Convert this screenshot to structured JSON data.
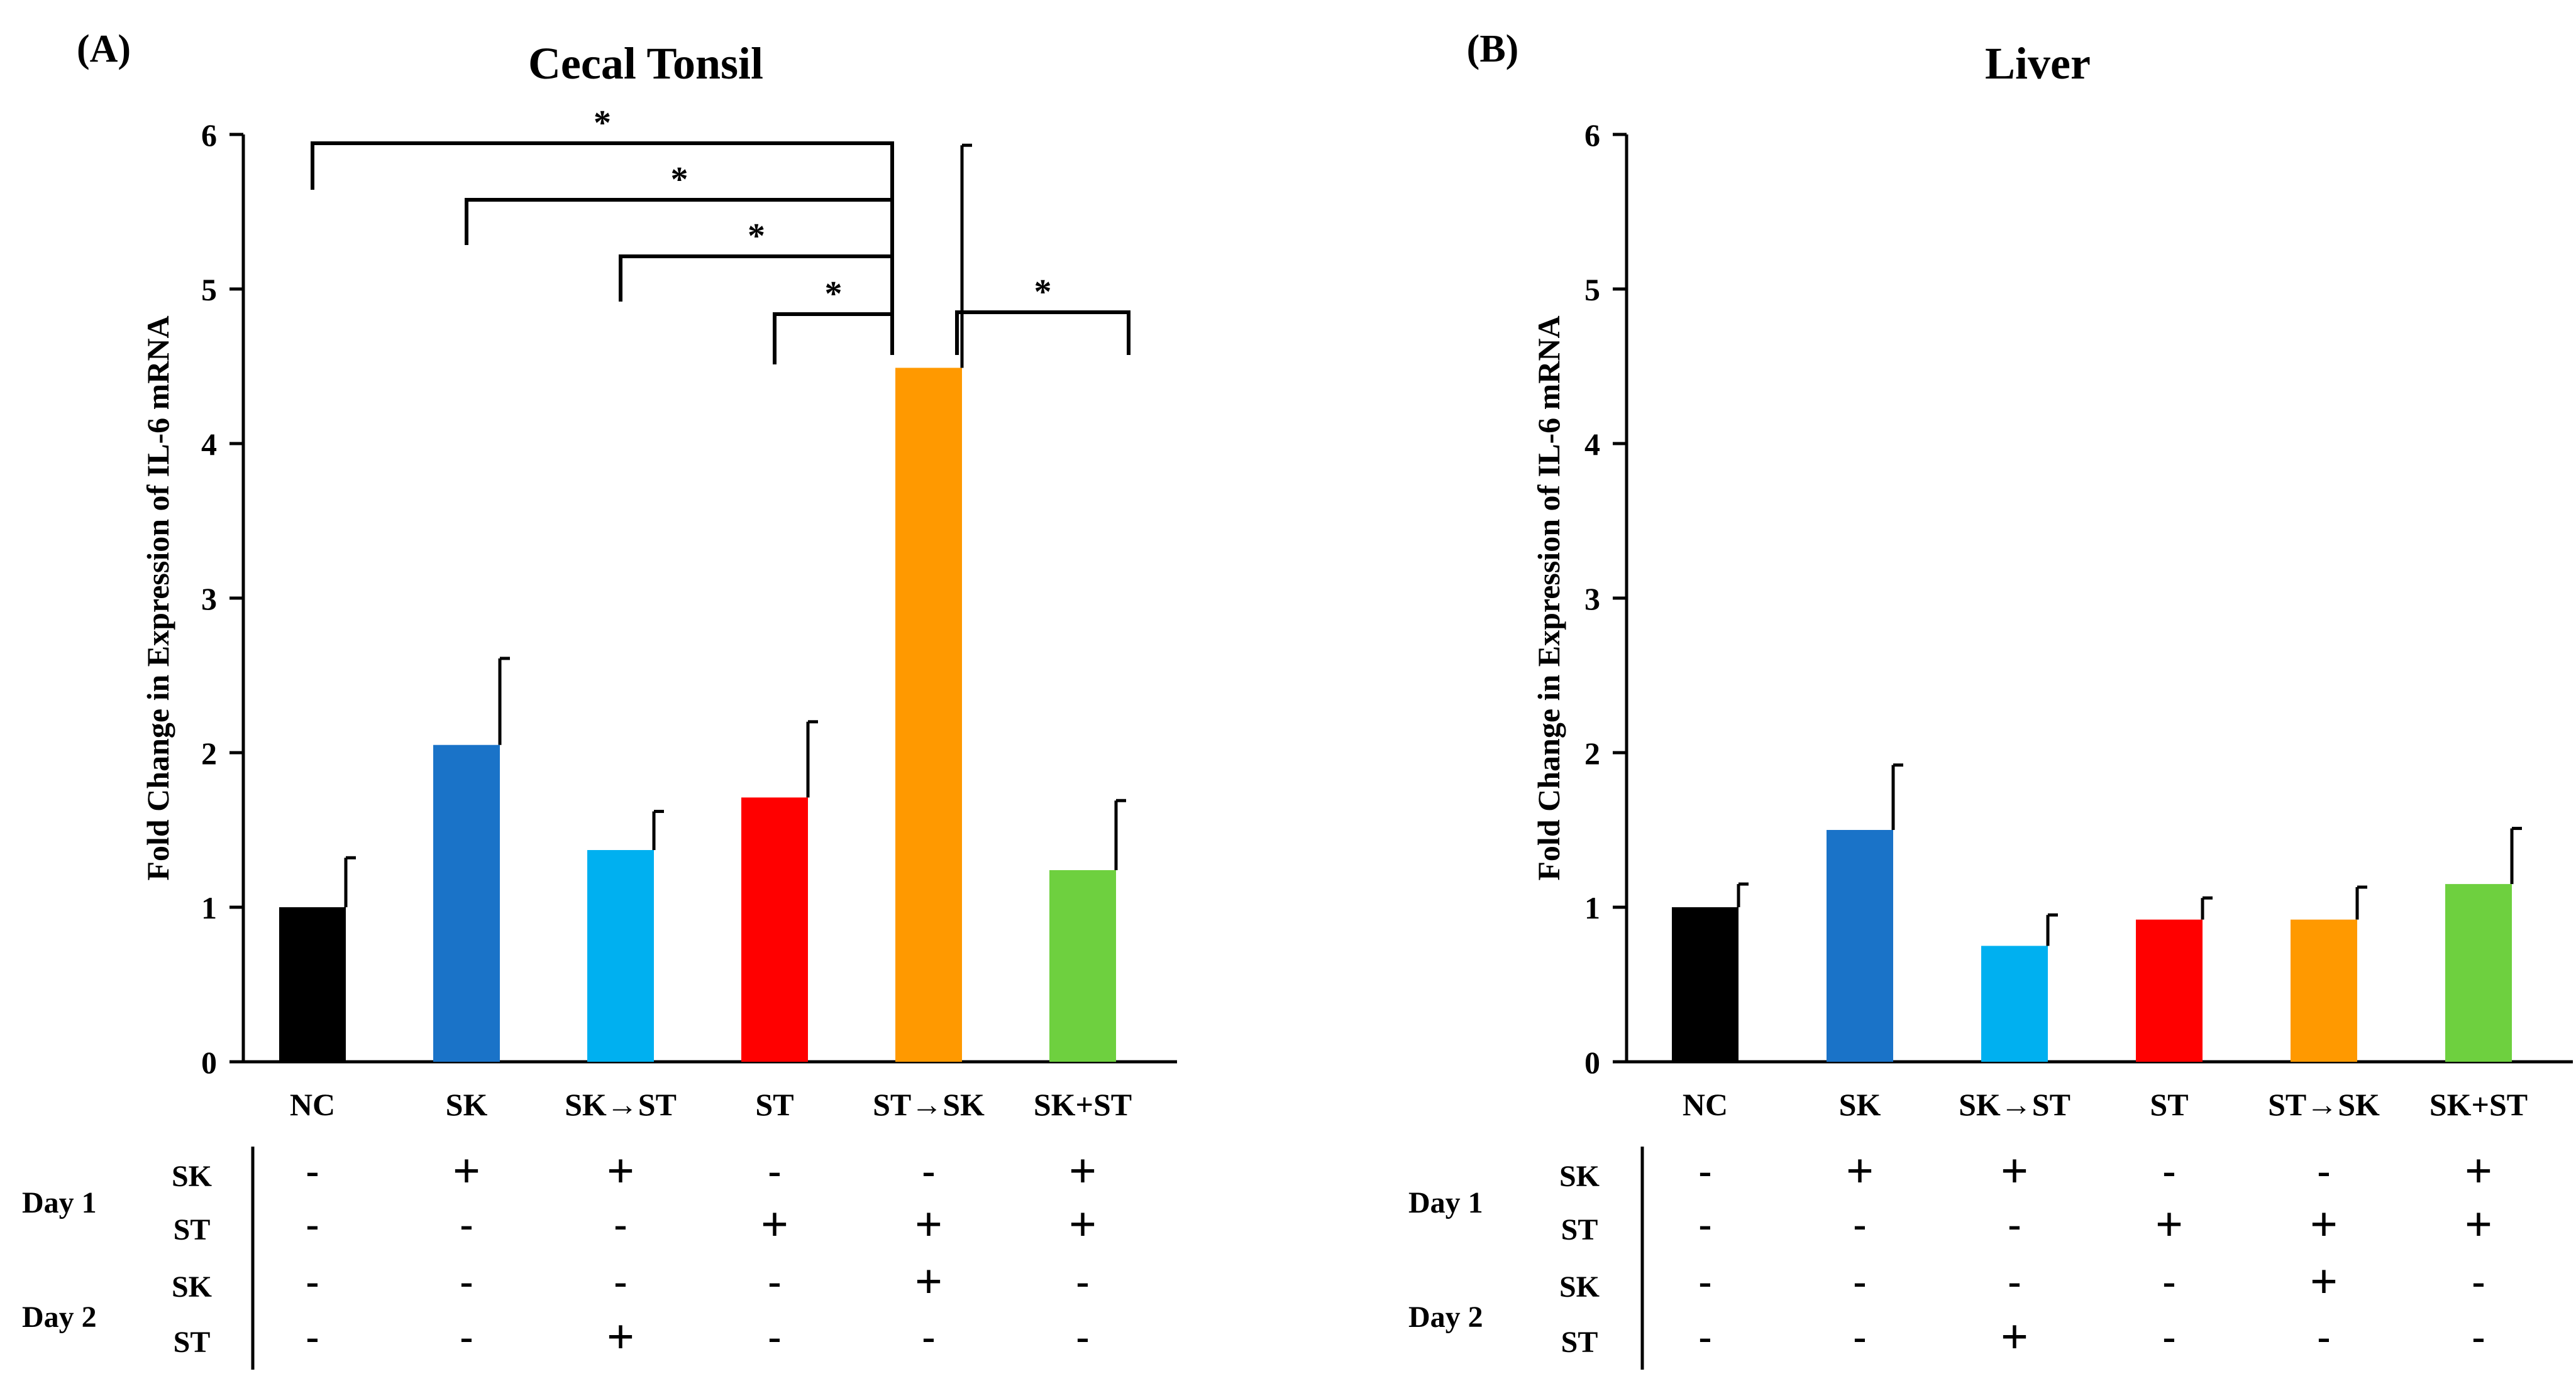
{
  "chart_data": [
    {
      "type": "bar",
      "panel_label": "(A)",
      "title": "Cecal Tonsil",
      "xlabel": "",
      "ylabel": "Fold Change in Expression of IL-6 mRNA",
      "ylim": [
        0,
        6
      ],
      "yticks": [
        "0",
        "1",
        "2",
        "3",
        "4",
        "5",
        "6"
      ],
      "categories": [
        "NC",
        "SK",
        "SK→ST",
        "ST",
        "ST→SK",
        "SK+ST"
      ],
      "values": [
        1.0,
        2.05,
        1.37,
        1.71,
        4.49,
        1.24
      ],
      "error": [
        0.32,
        0.56,
        0.25,
        0.49,
        1.44,
        0.45
      ],
      "colors": [
        "#000000",
        "#1a73c8",
        "#00b0f0",
        "#ff0000",
        "#ff9900",
        "#6ed03f"
      ],
      "grid": false,
      "significance": [
        {
          "from": 0,
          "to": 4,
          "label": "*"
        },
        {
          "from": 1,
          "to": 4,
          "label": "*"
        },
        {
          "from": 2,
          "to": 4,
          "label": "*"
        },
        {
          "from": 3,
          "to": 4,
          "label": "*"
        },
        {
          "from": 4,
          "to": 5,
          "label": "*"
        }
      ],
      "treatment_table": {
        "groups": [
          "Day 1",
          "Day 2"
        ],
        "rows": [
          {
            "group": 0,
            "label": "SK",
            "marks": [
              "-",
              "+",
              "+",
              "-",
              "-",
              "+"
            ]
          },
          {
            "group": 0,
            "label": "ST",
            "marks": [
              "-",
              "-",
              "-",
              "+",
              "+",
              "+"
            ]
          },
          {
            "group": 1,
            "label": "SK",
            "marks": [
              "-",
              "-",
              "-",
              "-",
              "+",
              "-"
            ]
          },
          {
            "group": 1,
            "label": "ST",
            "marks": [
              "-",
              "-",
              "+",
              "-",
              "-",
              "-"
            ]
          }
        ]
      }
    },
    {
      "type": "bar",
      "panel_label": "(B)",
      "title": "Liver",
      "xlabel": "",
      "ylabel": "Fold Change in Expression of IL-6 mRNA",
      "ylim": [
        0,
        6
      ],
      "yticks": [
        "0",
        "1",
        "2",
        "3",
        "4",
        "5",
        "6"
      ],
      "categories": [
        "NC",
        "SK",
        "SK→ST",
        "ST",
        "ST→SK",
        "SK+ST"
      ],
      "values": [
        1.0,
        1.5,
        0.75,
        0.92,
        0.92,
        1.15
      ],
      "error": [
        0.15,
        0.42,
        0.2,
        0.14,
        0.21,
        0.36
      ],
      "colors": [
        "#000000",
        "#1a73c8",
        "#00b0f0",
        "#ff0000",
        "#ff9900",
        "#6ed03f"
      ],
      "grid": false,
      "significance": [],
      "treatment_table": {
        "groups": [
          "Day 1",
          "Day 2"
        ],
        "rows": [
          {
            "group": 0,
            "label": "SK",
            "marks": [
              "-",
              "+",
              "+",
              "-",
              "-",
              "+"
            ]
          },
          {
            "group": 0,
            "label": "ST",
            "marks": [
              "-",
              "-",
              "-",
              "+",
              "+",
              "+"
            ]
          },
          {
            "group": 1,
            "label": "SK",
            "marks": [
              "-",
              "-",
              "-",
              "-",
              "+",
              "-"
            ]
          },
          {
            "group": 1,
            "label": "ST",
            "marks": [
              "-",
              "-",
              "+",
              "-",
              "-",
              "-"
            ]
          }
        ]
      }
    }
  ]
}
